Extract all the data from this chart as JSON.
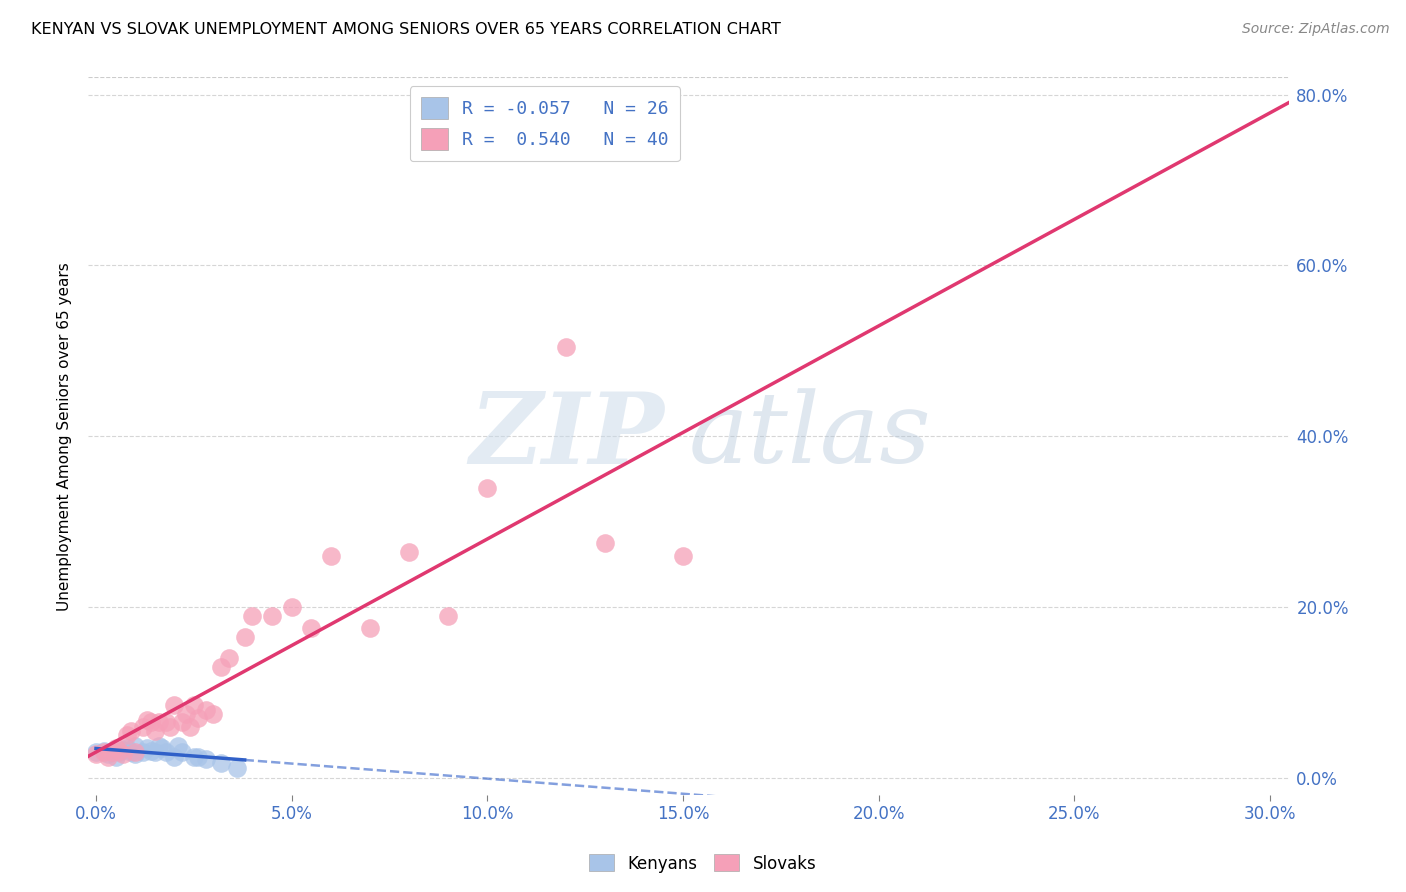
{
  "title": "KENYAN VS SLOVAK UNEMPLOYMENT AMONG SENIORS OVER 65 YEARS CORRELATION CHART",
  "source": "Source: ZipAtlas.com",
  "ylabel_label": "Unemployment Among Seniors over 65 years",
  "xlim": [
    -0.002,
    0.305
  ],
  "ylim": [
    -0.02,
    0.82
  ],
  "kenyan_R": -0.057,
  "kenyan_N": 26,
  "slovak_R": 0.54,
  "slovak_N": 40,
  "kenyan_color": "#a8c4e8",
  "slovak_color": "#f5a0b8",
  "kenyan_line_color": "#3060c8",
  "slovak_line_color": "#e03870",
  "legend_labels": [
    "Kenyans",
    "Slovaks"
  ],
  "kenyan_x": [
    0.0,
    0.002,
    0.003,
    0.004,
    0.005,
    0.006,
    0.007,
    0.008,
    0.009,
    0.01,
    0.01,
    0.012,
    0.013,
    0.014,
    0.015,
    0.016,
    0.017,
    0.018,
    0.02,
    0.021,
    0.022,
    0.025,
    0.026,
    0.028,
    0.032,
    0.036
  ],
  "kenyan_y": [
    0.03,
    0.032,
    0.028,
    0.03,
    0.025,
    0.03,
    0.033,
    0.035,
    0.03,
    0.028,
    0.038,
    0.03,
    0.035,
    0.032,
    0.03,
    0.038,
    0.035,
    0.03,
    0.025,
    0.038,
    0.03,
    0.025,
    0.025,
    0.022,
    0.018,
    0.012
  ],
  "slovak_x": [
    0.0,
    0.002,
    0.003,
    0.004,
    0.005,
    0.006,
    0.007,
    0.008,
    0.009,
    0.01,
    0.012,
    0.013,
    0.014,
    0.015,
    0.016,
    0.018,
    0.019,
    0.02,
    0.022,
    0.023,
    0.024,
    0.025,
    0.026,
    0.028,
    0.03,
    0.032,
    0.034,
    0.038,
    0.04,
    0.045,
    0.05,
    0.055,
    0.06,
    0.07,
    0.08,
    0.09,
    0.1,
    0.12,
    0.13,
    0.15
  ],
  "slovak_y": [
    0.028,
    0.03,
    0.025,
    0.03,
    0.035,
    0.032,
    0.028,
    0.05,
    0.055,
    0.03,
    0.06,
    0.068,
    0.065,
    0.055,
    0.065,
    0.065,
    0.06,
    0.085,
    0.065,
    0.075,
    0.06,
    0.085,
    0.07,
    0.08,
    0.075,
    0.13,
    0.14,
    0.165,
    0.19,
    0.19,
    0.2,
    0.175,
    0.26,
    0.175,
    0.265,
    0.19,
    0.34,
    0.505,
    0.275,
    0.26
  ],
  "watermark_zip": "ZIP",
  "watermark_atlas": "atlas",
  "background_color": "#ffffff",
  "grid_color": "#cccccc",
  "x_ticks": [
    0.0,
    0.05,
    0.1,
    0.15,
    0.2,
    0.25,
    0.3
  ],
  "y_ticks": [
    0.0,
    0.2,
    0.4,
    0.6,
    0.8
  ],
  "tick_color": "#4472c4"
}
